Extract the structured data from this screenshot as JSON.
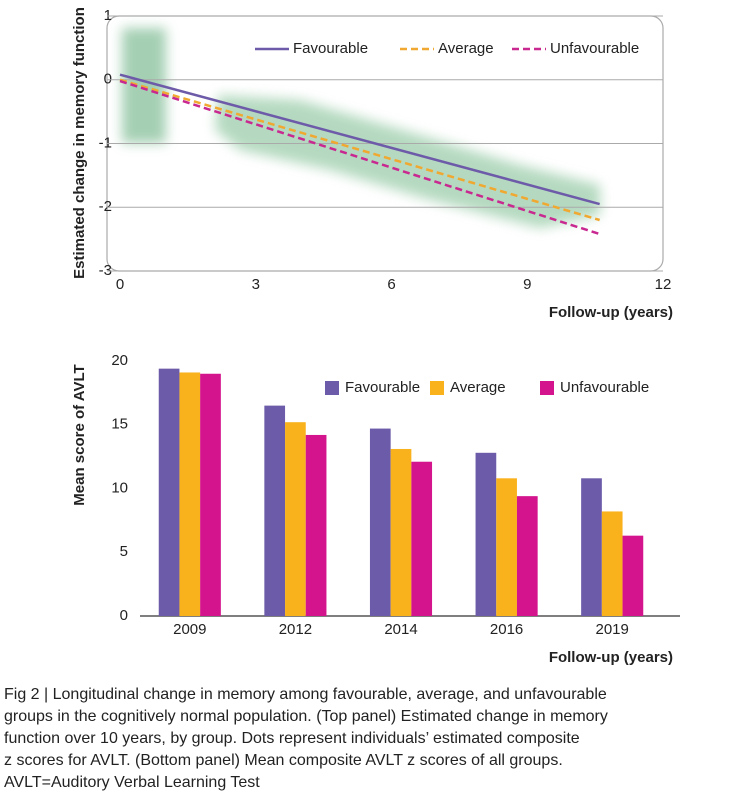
{
  "chart_data": [
    {
      "type": "line",
      "y_label": "Estimated change in memory function",
      "x_label": "Follow-up (years)",
      "x": [
        0,
        10.6
      ],
      "xlim": [
        0,
        12
      ],
      "xticks": [
        0,
        3,
        6,
        9,
        12
      ],
      "ylim": [
        -3,
        1
      ],
      "yticks": [
        1,
        0,
        -1,
        -2,
        -3
      ],
      "grid": true,
      "series": [
        {
          "name": "Favourable",
          "color": "#6d5aa8",
          "style": "solid",
          "values": [
            0.08,
            -1.95
          ]
        },
        {
          "name": "Average",
          "color": "#f0a830",
          "style": "dashed",
          "values": [
            0,
            -2.2
          ]
        },
        {
          "name": "Unfavourable",
          "color": "#c8288f",
          "style": "dashed",
          "values": [
            -0.02,
            -2.42
          ]
        }
      ]
    },
    {
      "type": "bar",
      "y_label": "Mean score of AVLT",
      "x_label": "Follow-up (years)",
      "categories": [
        "2009",
        "2012",
        "2014",
        "2016",
        "2019"
      ],
      "ylim": [
        0,
        20
      ],
      "yticks": [
        0,
        5,
        10,
        15,
        20
      ],
      "grid": false,
      "series": [
        {
          "name": "Favourable",
          "color": "#6b5ba8",
          "values": [
            19.4,
            16.5,
            14.7,
            12.8,
            10.8
          ]
        },
        {
          "name": "Average",
          "color": "#f9b21b",
          "values": [
            19.1,
            15.2,
            13.1,
            10.8,
            8.2
          ]
        },
        {
          "name": "Unfavourable",
          "color": "#d4148c",
          "values": [
            19.0,
            14.2,
            12.1,
            9.4,
            6.3
          ]
        }
      ]
    }
  ],
  "caption": [
    "Fig 2 | Longitudinal change in memory among favourable, average, and unfavourable",
    "groups in the cognitively normal population. (Top panel) Estimated change in memory",
    "function over 10 years, by group. Dots represent individuals’ estimated composite",
    "z scores for AVLT. (Bottom panel) Mean composite AVLT z scores of all groups.",
    "AVLT=Auditory Verbal Learning Test"
  ]
}
